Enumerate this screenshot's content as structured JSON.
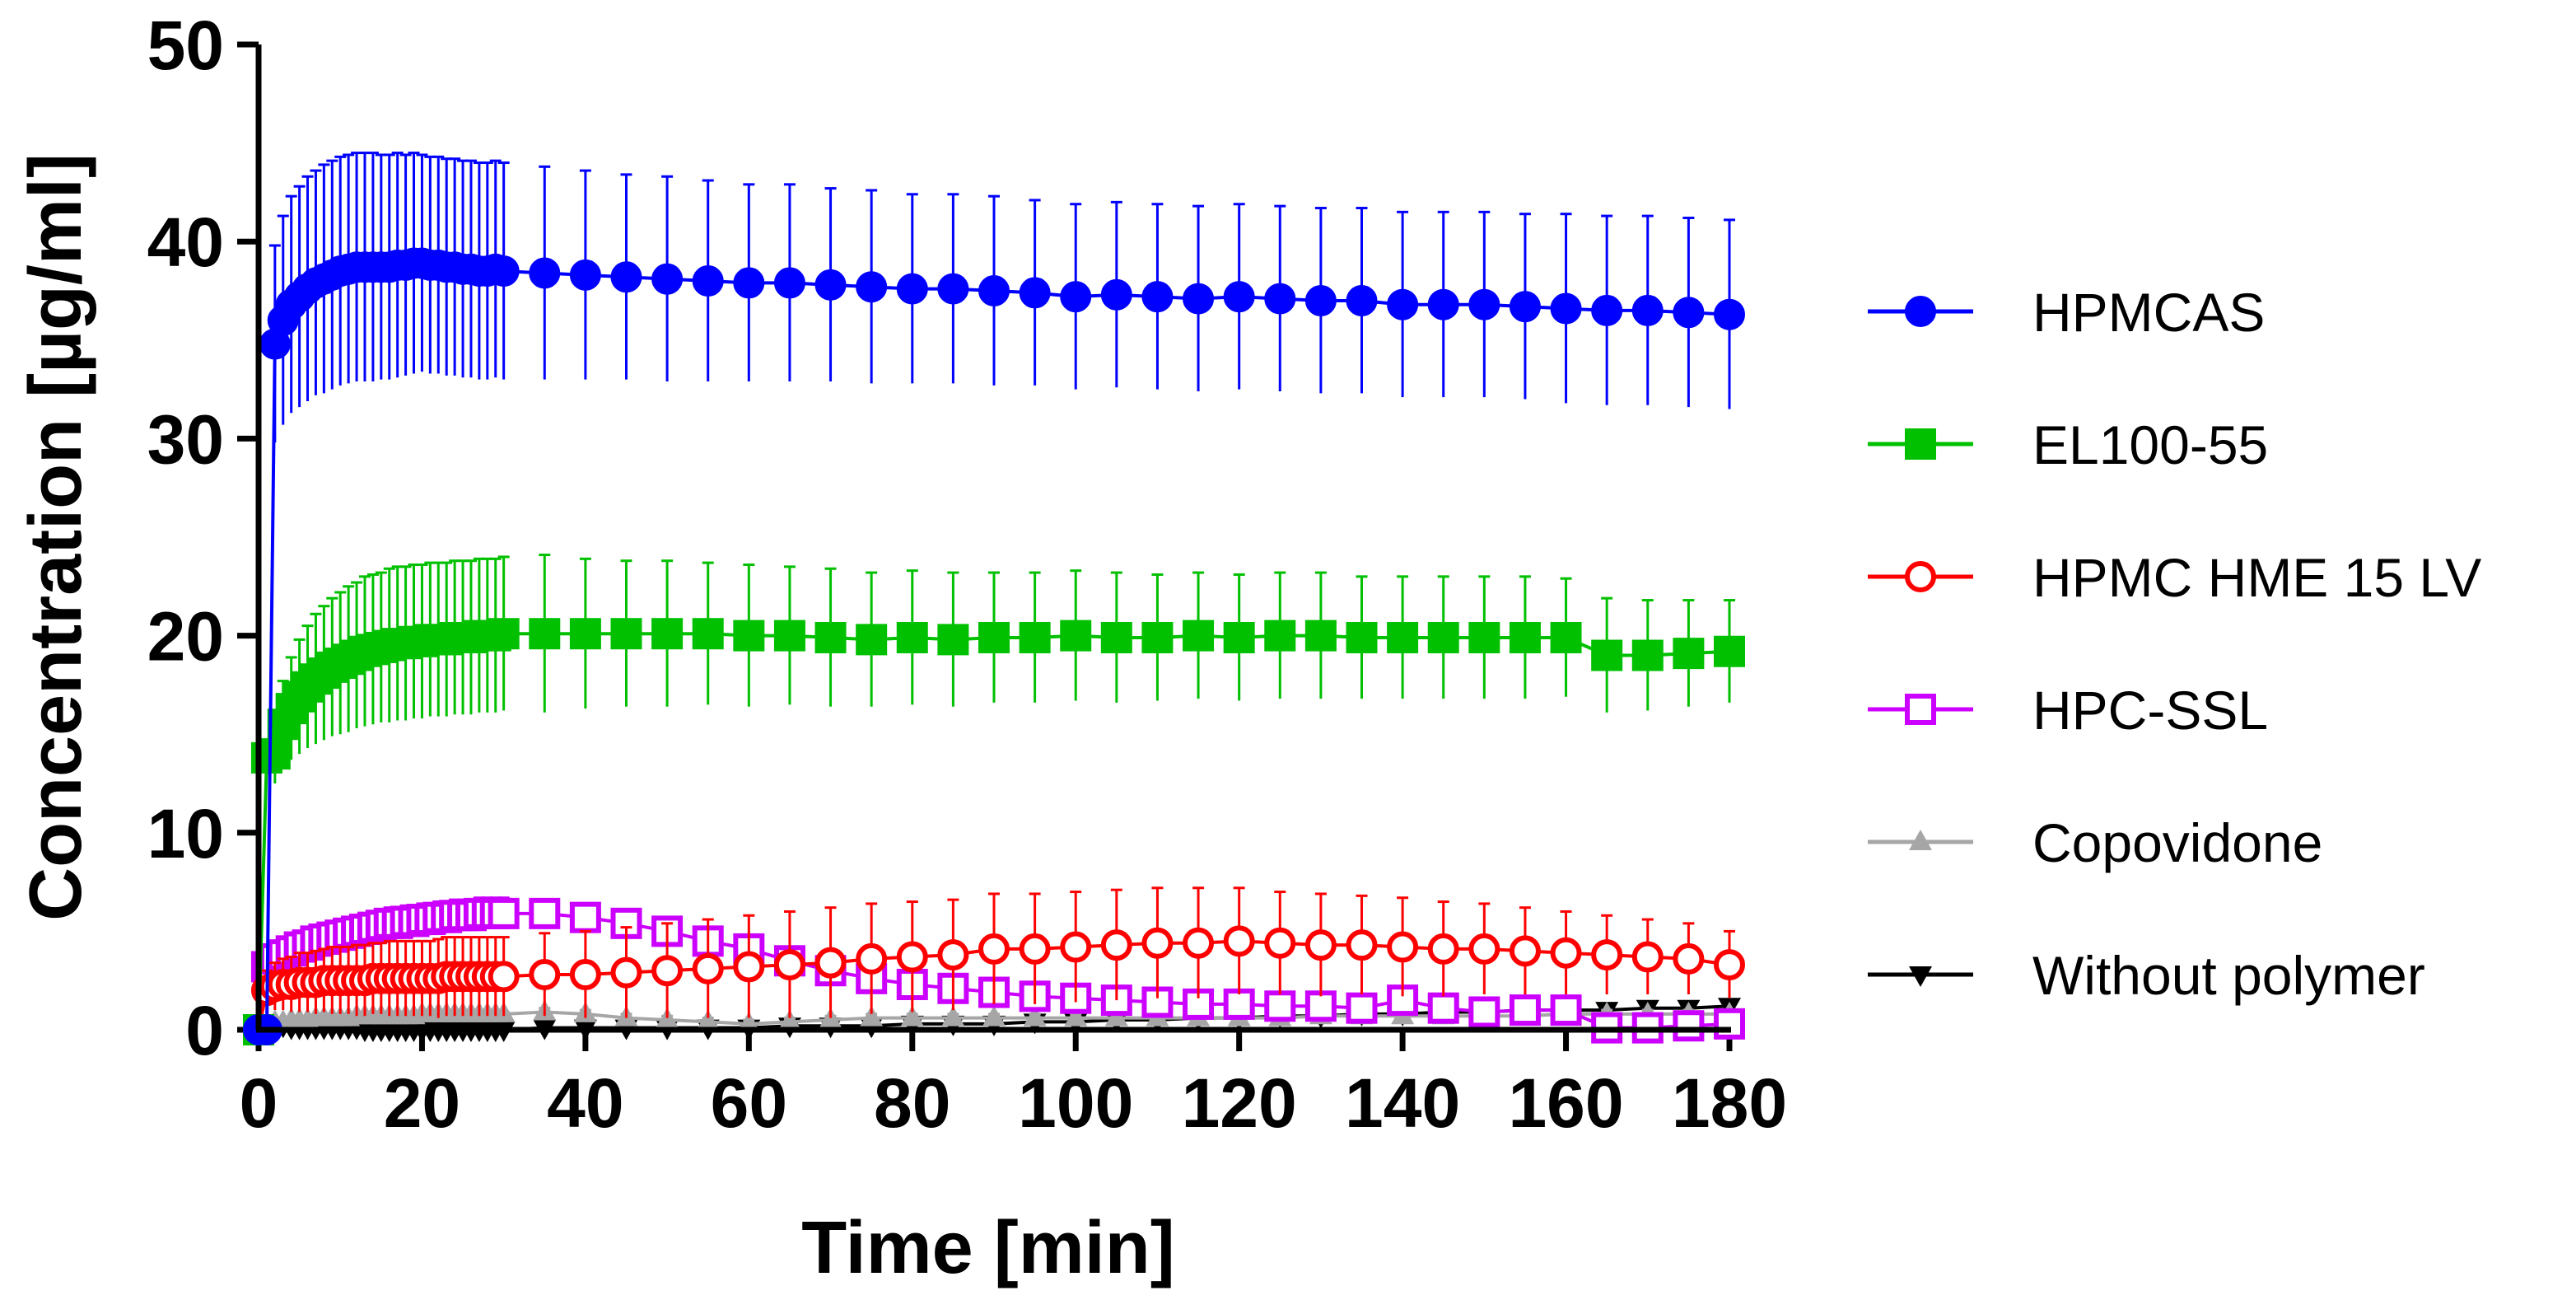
{
  "chart_data": {
    "type": "line",
    "xlabel": "Time [min]",
    "ylabel": "Concentration [µg/ml]",
    "xlim": [
      0,
      180
    ],
    "ylim": [
      0,
      50
    ],
    "xticks": [
      0,
      20,
      40,
      60,
      80,
      100,
      120,
      140,
      160,
      180
    ],
    "yticks": [
      0,
      10,
      20,
      30,
      40,
      50
    ],
    "grid": false,
    "legend_position": "right",
    "series": [
      {
        "name": "HPMCAS",
        "color": "#0000ff",
        "marker": "circle-filled",
        "x": [
          0,
          1,
          2,
          3,
          4,
          5,
          6,
          7,
          8,
          9,
          10,
          11,
          12,
          13,
          14,
          15,
          16,
          17,
          18,
          19,
          20,
          21,
          22,
          23,
          24,
          25,
          26,
          27,
          28,
          29,
          30,
          35,
          40,
          45,
          50,
          55,
          60,
          65,
          70,
          75,
          80,
          85,
          90,
          95,
          100,
          105,
          110,
          115,
          120,
          125,
          130,
          135,
          140,
          145,
          150,
          155,
          160,
          165,
          170,
          175,
          180
        ],
        "y": [
          0,
          0,
          34.8,
          36.0,
          36.8,
          37.2,
          37.6,
          37.9,
          38.1,
          38.3,
          38.5,
          38.6,
          38.7,
          38.7,
          38.7,
          38.7,
          38.7,
          38.8,
          38.8,
          38.9,
          38.9,
          38.8,
          38.8,
          38.7,
          38.7,
          38.6,
          38.6,
          38.5,
          38.5,
          38.6,
          38.5,
          38.4,
          38.3,
          38.2,
          38.1,
          38.0,
          37.9,
          37.9,
          37.8,
          37.7,
          37.6,
          37.6,
          37.5,
          37.4,
          37.2,
          37.3,
          37.2,
          37.1,
          37.2,
          37.1,
          37.0,
          37.0,
          36.8,
          36.8,
          36.8,
          36.7,
          36.6,
          36.5,
          36.5,
          36.4,
          36.3
        ],
        "error": [
          0,
          0,
          5.0,
          5.3,
          5.5,
          5.6,
          5.7,
          5.7,
          5.8,
          5.8,
          5.8,
          5.8,
          5.8,
          5.8,
          5.8,
          5.7,
          5.7,
          5.7,
          5.6,
          5.6,
          5.5,
          5.5,
          5.5,
          5.5,
          5.5,
          5.5,
          5.5,
          5.5,
          5.5,
          5.5,
          5.5,
          5.4,
          5.3,
          5.2,
          5.2,
          5.1,
          5.0,
          5.0,
          4.9,
          4.9,
          4.8,
          4.8,
          4.8,
          4.7,
          4.7,
          4.7,
          4.7,
          4.7,
          4.7,
          4.7,
          4.7,
          4.7,
          4.7,
          4.7,
          4.7,
          4.7,
          4.8,
          4.8,
          4.8,
          4.8,
          4.8
        ]
      },
      {
        "name": "EL100-55",
        "color": "#00c000",
        "marker": "square-filled",
        "x": [
          0,
          1,
          2,
          3,
          4,
          5,
          6,
          7,
          8,
          9,
          10,
          11,
          12,
          13,
          14,
          15,
          16,
          17,
          18,
          19,
          20,
          21,
          22,
          23,
          24,
          25,
          26,
          27,
          28,
          29,
          30,
          35,
          40,
          45,
          50,
          55,
          60,
          65,
          70,
          75,
          80,
          85,
          90,
          95,
          100,
          105,
          110,
          115,
          120,
          125,
          130,
          135,
          140,
          145,
          150,
          155,
          160,
          165,
          170,
          175,
          180
        ],
        "y": [
          0,
          13.8,
          14.0,
          15.5,
          16.3,
          16.9,
          17.4,
          17.8,
          18.1,
          18.4,
          18.6,
          18.8,
          19.0,
          19.2,
          19.3,
          19.4,
          19.5,
          19.6,
          19.6,
          19.7,
          19.7,
          19.8,
          19.8,
          19.8,
          19.9,
          19.9,
          19.9,
          20.0,
          20.0,
          20.0,
          20.1,
          20.1,
          20.1,
          20.1,
          20.1,
          20.1,
          20.0,
          20.0,
          19.9,
          19.8,
          19.9,
          19.8,
          19.9,
          19.9,
          20.0,
          19.9,
          19.9,
          20.0,
          19.9,
          20.0,
          20.0,
          19.9,
          19.9,
          19.9,
          19.9,
          19.9,
          19.9,
          19.0,
          19.0,
          19.1,
          19.2
        ],
        "error": [
          0,
          0.5,
          1.5,
          2.2,
          2.6,
          2.9,
          3.1,
          3.3,
          3.4,
          3.5,
          3.6,
          3.7,
          3.7,
          3.8,
          3.8,
          3.8,
          3.9,
          3.9,
          3.9,
          3.9,
          3.9,
          3.9,
          3.9,
          3.9,
          3.9,
          3.9,
          3.9,
          3.9,
          3.9,
          3.9,
          3.9,
          4.0,
          3.8,
          3.7,
          3.7,
          3.6,
          3.6,
          3.5,
          3.5,
          3.4,
          3.4,
          3.4,
          3.3,
          3.3,
          3.3,
          3.3,
          3.2,
          3.2,
          3.2,
          3.2,
          3.2,
          3.1,
          3.1,
          3.1,
          3.1,
          3.1,
          3.0,
          2.9,
          2.8,
          2.7,
          2.6
        ]
      },
      {
        "name": "HPMC HME 15 LV",
        "color": "#ff0000",
        "marker": "circle-open",
        "x": [
          0,
          1,
          2,
          3,
          4,
          5,
          6,
          7,
          8,
          9,
          10,
          11,
          12,
          13,
          14,
          15,
          16,
          17,
          18,
          19,
          20,
          21,
          22,
          23,
          24,
          25,
          26,
          27,
          28,
          29,
          30,
          35,
          40,
          45,
          50,
          55,
          60,
          65,
          70,
          75,
          80,
          85,
          90,
          95,
          100,
          105,
          110,
          115,
          120,
          125,
          130,
          135,
          140,
          145,
          150,
          155,
          160,
          165,
          170,
          175,
          180
        ],
        "y": [
          0,
          2.0,
          2.2,
          2.3,
          2.3,
          2.4,
          2.4,
          2.4,
          2.5,
          2.5,
          2.5,
          2.5,
          2.5,
          2.5,
          2.6,
          2.6,
          2.6,
          2.6,
          2.6,
          2.6,
          2.6,
          2.6,
          2.6,
          2.7,
          2.7,
          2.7,
          2.7,
          2.7,
          2.7,
          2.7,
          2.7,
          2.8,
          2.8,
          2.9,
          3.0,
          3.1,
          3.2,
          3.3,
          3.4,
          3.6,
          3.7,
          3.8,
          4.1,
          4.1,
          4.2,
          4.3,
          4.4,
          4.4,
          4.5,
          4.4,
          4.3,
          4.3,
          4.2,
          4.1,
          4.1,
          4.0,
          3.9,
          3.8,
          3.7,
          3.6,
          3.3
        ],
        "error": [
          0,
          1.0,
          1.2,
          1.3,
          1.4,
          1.5,
          1.5,
          1.6,
          1.6,
          1.7,
          1.7,
          1.7,
          1.8,
          1.8,
          1.8,
          1.8,
          1.9,
          1.9,
          1.9,
          1.9,
          1.9,
          1.9,
          2.0,
          2.0,
          2.0,
          2.0,
          2.0,
          2.0,
          2.0,
          2.0,
          2.0,
          2.1,
          2.2,
          2.3,
          2.4,
          2.5,
          2.6,
          2.7,
          2.8,
          2.8,
          2.8,
          2.8,
          2.8,
          2.8,
          2.8,
          2.8,
          2.8,
          2.8,
          2.7,
          2.6,
          2.6,
          2.5,
          2.5,
          2.4,
          2.3,
          2.2,
          2.1,
          2.0,
          1.9,
          1.8,
          1.7
        ]
      },
      {
        "name": "HPC-SSL",
        "color": "#cc00ff",
        "marker": "square-open",
        "x": [
          0,
          1,
          2,
          3,
          4,
          5,
          6,
          7,
          8,
          9,
          10,
          11,
          12,
          13,
          14,
          15,
          16,
          17,
          18,
          19,
          20,
          21,
          22,
          23,
          24,
          25,
          26,
          27,
          28,
          29,
          30,
          35,
          40,
          45,
          50,
          55,
          60,
          65,
          70,
          75,
          80,
          85,
          90,
          95,
          100,
          105,
          110,
          115,
          120,
          125,
          130,
          135,
          140,
          145,
          150,
          155,
          160,
          165,
          170,
          175,
          180
        ],
        "y": [
          0,
          3.2,
          3.6,
          3.8,
          4.0,
          4.2,
          4.3,
          4.5,
          4.6,
          4.7,
          4.8,
          4.9,
          5.0,
          5.1,
          5.2,
          5.3,
          5.4,
          5.4,
          5.5,
          5.5,
          5.6,
          5.6,
          5.7,
          5.7,
          5.8,
          5.8,
          5.8,
          5.9,
          5.9,
          5.9,
          5.9,
          5.9,
          5.7,
          5.4,
          5.0,
          4.5,
          4.1,
          3.5,
          3.0,
          2.6,
          2.3,
          2.1,
          1.9,
          1.7,
          1.6,
          1.5,
          1.4,
          1.3,
          1.3,
          1.2,
          1.2,
          1.1,
          1.5,
          1.1,
          0.9,
          1.0,
          1.0,
          0.1,
          0.1,
          0.2,
          0.3
        ],
        "error": [
          0,
          0.6,
          0.7,
          0.7,
          0.8,
          0.8,
          0.8,
          0.8,
          0.8,
          0.8,
          0.8,
          0.8,
          0.8,
          0.8,
          0.8,
          0.8,
          0.8,
          0.8,
          0.8,
          0.8,
          0.8,
          0.8,
          0.8,
          0.8,
          0.8,
          0.8,
          0.8,
          0.8,
          0.8,
          0.8,
          0.8,
          0.7,
          0.7,
          0.7,
          0.6,
          0.6,
          0.6,
          0.5,
          0.5,
          0.5,
          0.4,
          0.4,
          0.4,
          0.4,
          0.4,
          0.4,
          0.4,
          0.4,
          0.4,
          0.4,
          0.4,
          0.4,
          0.4,
          0.4,
          0.4,
          0.4,
          0.4,
          0.3,
          0.3,
          0.3,
          0.3
        ]
      },
      {
        "name": "Copovidone",
        "color": "#a6a6a6",
        "marker": "triangle-up-filled",
        "x": [
          0,
          1,
          2,
          3,
          4,
          5,
          6,
          7,
          8,
          9,
          10,
          11,
          12,
          13,
          14,
          15,
          16,
          17,
          18,
          19,
          20,
          21,
          22,
          23,
          24,
          25,
          26,
          27,
          28,
          29,
          30,
          35,
          40,
          45,
          50,
          55,
          60,
          65,
          70,
          75,
          80,
          85,
          90,
          95,
          100,
          105,
          110,
          115,
          120,
          125,
          130,
          135,
          140,
          145,
          150,
          155,
          160,
          165,
          170,
          175,
          180
        ],
        "y": [
          0,
          0.3,
          0.4,
          0.4,
          0.5,
          0.5,
          0.5,
          0.6,
          0.6,
          0.6,
          0.6,
          0.6,
          0.7,
          0.7,
          0.7,
          0.7,
          0.7,
          0.7,
          0.7,
          0.7,
          0.8,
          0.8,
          0.8,
          0.8,
          0.8,
          0.8,
          0.8,
          0.8,
          0.8,
          0.8,
          0.8,
          0.9,
          0.8,
          0.6,
          0.5,
          0.4,
          0.3,
          0.4,
          0.5,
          0.6,
          0.6,
          0.6,
          0.6,
          0.6,
          0.6,
          0.6,
          0.6,
          0.6,
          0.6,
          0.6,
          0.7,
          0.7,
          0.7,
          0.7,
          0.7,
          0.7,
          0.8,
          0.8,
          0.8,
          0.8,
          0.8
        ],
        "error": [
          0,
          0.1,
          0.1,
          0.1,
          0.1,
          0.1,
          0.1,
          0.1,
          0.1,
          0.1,
          0.1,
          0.1,
          0.1,
          0.1,
          0.1,
          0.1,
          0.1,
          0.1,
          0.1,
          0.1,
          0.1,
          0.1,
          0.1,
          0.1,
          0.1,
          0.1,
          0.1,
          0.1,
          0.1,
          0.1,
          0.1,
          0.2,
          0.2,
          0.2,
          0.2,
          0.2,
          0.2,
          0.2,
          0.2,
          0.2,
          0.2,
          0.2,
          0.2,
          0.2,
          0.2,
          0.2,
          0.2,
          0.2,
          0.2,
          0.2,
          0.2,
          0.2,
          0.2,
          0.2,
          0.2,
          0.2,
          0.2,
          0.2,
          0.2,
          0.2,
          0.2
        ]
      },
      {
        "name": "Without polymer",
        "color": "#000000",
        "marker": "triangle-down-filled",
        "x": [
          0,
          1,
          2,
          3,
          4,
          5,
          6,
          7,
          8,
          9,
          10,
          11,
          12,
          13,
          14,
          15,
          16,
          17,
          18,
          19,
          20,
          21,
          22,
          23,
          24,
          25,
          26,
          27,
          28,
          29,
          30,
          35,
          40,
          45,
          50,
          55,
          60,
          65,
          70,
          75,
          80,
          85,
          90,
          95,
          100,
          105,
          110,
          115,
          120,
          125,
          130,
          135,
          140,
          145,
          150,
          155,
          160,
          165,
          170,
          175,
          180
        ],
        "y": [
          0,
          0.3,
          0.2,
          0.2,
          0.1,
          0.1,
          0.1,
          0.1,
          0.1,
          0.1,
          0.1,
          0.1,
          0.1,
          0.0,
          0.0,
          0.0,
          0.0,
          0.0,
          0.0,
          0.0,
          0.0,
          0.0,
          0.0,
          0.0,
          0.0,
          0.0,
          0.0,
          0.0,
          0.0,
          0.0,
          0.0,
          0.1,
          0.1,
          0.1,
          0.1,
          0.1,
          0.1,
          0.2,
          0.2,
          0.2,
          0.3,
          0.3,
          0.3,
          0.4,
          0.4,
          0.5,
          0.5,
          0.6,
          0.6,
          0.7,
          0.7,
          0.8,
          0.8,
          0.9,
          0.9,
          1.0,
          1.0,
          1.0,
          1.1,
          1.1,
          1.2
        ],
        "error": [
          0,
          0.1,
          0.1,
          0.1,
          0.1,
          0.1,
          0.1,
          0.1,
          0.1,
          0.1,
          0.1,
          0.1,
          0.1,
          0.1,
          0.1,
          0.1,
          0.1,
          0.1,
          0.1,
          0.1,
          0.1,
          0.1,
          0.1,
          0.1,
          0.1,
          0.1,
          0.1,
          0.1,
          0.1,
          0.1,
          0.1,
          0.1,
          0.1,
          0.1,
          0.1,
          0.1,
          0.1,
          0.1,
          0.1,
          0.1,
          0.1,
          0.1,
          0.1,
          0.1,
          0.1,
          0.1,
          0.1,
          0.1,
          0.1,
          0.1,
          0.1,
          0.1,
          0.1,
          0.1,
          0.1,
          0.1,
          0.1,
          0.1,
          0.1,
          0.1,
          0.1
        ]
      }
    ]
  }
}
